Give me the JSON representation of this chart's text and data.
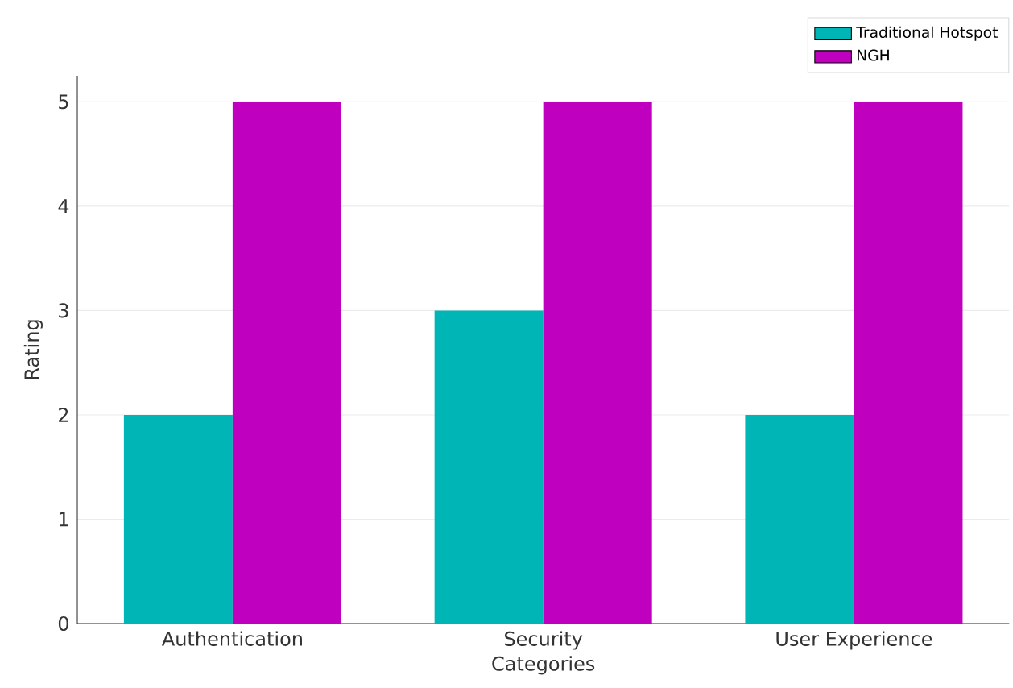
{
  "chart_data": {
    "type": "bar",
    "xlabel": "Categories",
    "ylabel": "Rating",
    "categories": [
      "Authentication",
      "Security",
      "User Experience"
    ],
    "series": [
      {
        "name": "Traditional Hotspot",
        "color": "#00b5b5",
        "values": [
          2,
          3,
          2
        ]
      },
      {
        "name": "NGH",
        "color": "#bf00bf",
        "values": [
          5,
          5,
          5
        ]
      }
    ],
    "ylim": [
      0,
      5.25
    ],
    "yticks": [
      0,
      1,
      2,
      3,
      4,
      5
    ],
    "grid": "y",
    "legend": "top right"
  }
}
